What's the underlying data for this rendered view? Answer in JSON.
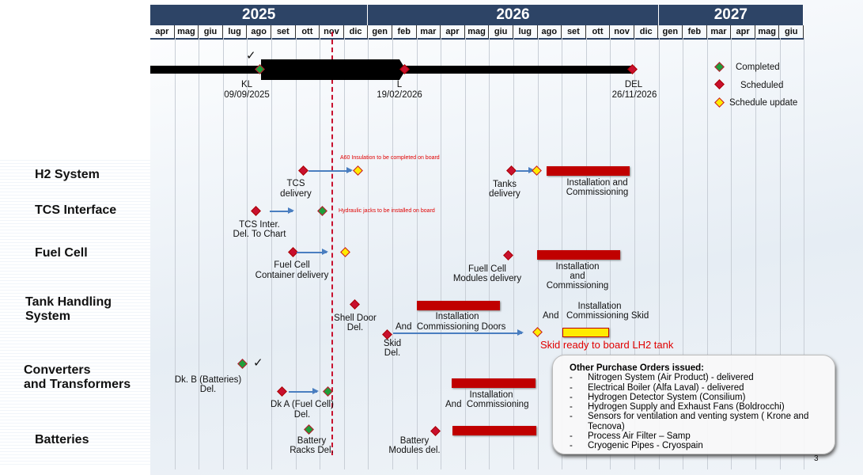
{
  "years": [
    {
      "label": "2025",
      "months": 9
    },
    {
      "label": "2026",
      "months": 12
    },
    {
      "label": "2027",
      "months": 6
    }
  ],
  "months": [
    "apr",
    "mag",
    "giu",
    "lug",
    "ago",
    "set",
    "ott",
    "nov",
    "dic",
    "gen",
    "feb",
    "mar",
    "apr",
    "mag",
    "giu",
    "lug",
    "ago",
    "set",
    "ott",
    "nov",
    "dic",
    "gen",
    "feb",
    "mar",
    "apr",
    "mag",
    "giu"
  ],
  "milestones": {
    "kl": {
      "label": "KL",
      "date": "09/09/2025"
    },
    "l": {
      "label": "L",
      "date": "19/02/2026"
    },
    "del": {
      "label": "DEL",
      "date": "26/11/2026"
    }
  },
  "legend": {
    "completed": "Completed",
    "scheduled": "Scheduled",
    "update": "Schedule update",
    "colors": {
      "completed": "#1f9e3a",
      "scheduled": "#c8102e",
      "update": "#ffeb00"
    }
  },
  "rows": {
    "h2": {
      "title": "H2 System",
      "note": "A60 Insulation to be completed on board",
      "tcs": [
        "TCS",
        "delivery"
      ],
      "tanks": [
        "Tanks",
        "delivery"
      ],
      "install": [
        "Installation and",
        "Commissioning"
      ]
    },
    "tcsi": {
      "title": "TCS Interface",
      "note": "Hydraulic jacks to be installed on board",
      "label": [
        "TCS Inter.",
        "Del. To Chart"
      ]
    },
    "fc": {
      "title": "Fuel Cell",
      "container": [
        "Fuel Cell",
        "Container delivery"
      ],
      "modules": [
        "Fuell Cell",
        "Modules delivery"
      ],
      "install": [
        "Installation",
        "and",
        "Commissioning"
      ]
    },
    "tank": {
      "title": [
        "Tank Handling",
        "System"
      ],
      "shell": [
        "Shell Door",
        "Del."
      ],
      "doors": [
        "Installation",
        "And  Commissioning Doors"
      ],
      "skid": [
        "Skid",
        "Del."
      ],
      "skidinst": [
        "Installation",
        "And   Commissioning Skid"
      ],
      "skidnote": "Skid ready to board LH2 tank"
    },
    "conv": {
      "title": [
        "Converters",
        "and Transformers"
      ],
      "dkb": [
        "Dk. B (Batteries)",
        "Del."
      ],
      "dka": [
        "Dk A (Fuel Cell)",
        "Del."
      ],
      "install": [
        "Installation",
        "And  Commissioning"
      ]
    },
    "batt": {
      "title": "Batteries",
      "racks": [
        "Battery",
        "Racks Del."
      ],
      "modules": [
        "Battery",
        "Modules del."
      ]
    }
  },
  "orders": {
    "title": "Other Purchase Orders issued:",
    "items": [
      "Nitrogen System (Air Product) - delivered",
      "Electrical Boiler (Alfa Laval) - delivered",
      "Hydrogen Detector System (Consilium)",
      "Hydrogen Supply and Exhaust Fans (Boldrocchi)",
      "Sensors for ventilation and venting system ( Krone and Tecnova)",
      "Process Air Filter – Samp",
      "Cryogenic Pipes - Cryospain"
    ]
  },
  "page_number": "3"
}
